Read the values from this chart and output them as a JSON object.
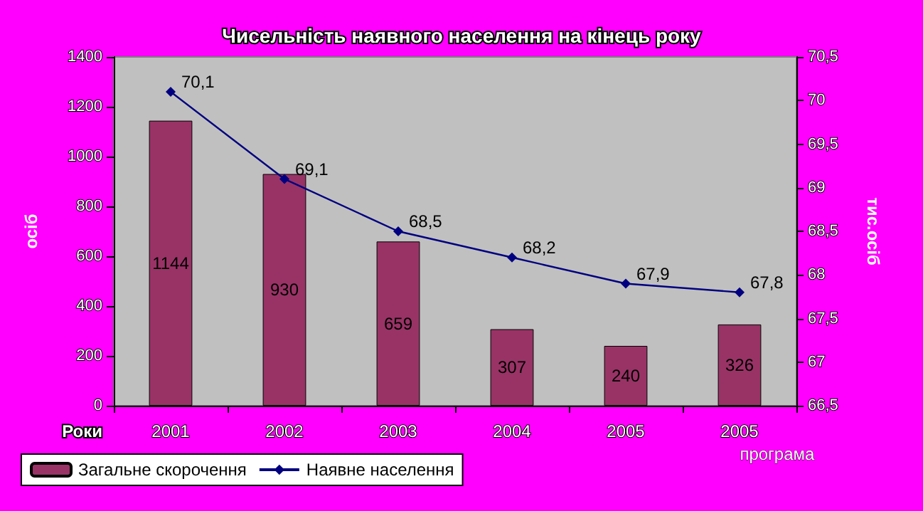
{
  "chart_data": {
    "type": "bar",
    "title": "Чисельність наявного населення на кінець року",
    "xlabel": "Роки",
    "ylabel": "осіб",
    "y2label": "тис.осіб",
    "annotations": [
      "програма"
    ],
    "categories": [
      "2001",
      "2002",
      "2003",
      "2004",
      "2005",
      "2005"
    ],
    "series": [
      {
        "name": "Загальне скорочення",
        "color": "#993366",
        "values": [
          1144,
          930,
          659,
          307,
          240,
          326
        ],
        "data_labels": true
      },
      {
        "name": "Наявне населення",
        "type": "line",
        "axis": "y2",
        "color": "#000080",
        "values": [
          70.1,
          69.1,
          68.5,
          68.2,
          67.9,
          67.8
        ],
        "value_labels": [
          "70,1",
          "69,1",
          "68,5",
          "68,2",
          "67,9",
          "67,8"
        ],
        "marker": "diamond"
      }
    ],
    "ylim": [
      0,
      1400
    ],
    "yticks": [
      0,
      200,
      400,
      600,
      800,
      1000,
      1200,
      1400
    ],
    "y2lim": [
      66.5,
      70.5
    ],
    "y2ticks": [
      {
        "value": 66.5,
        "label": "66,5"
      },
      {
        "value": 67,
        "label": "67"
      },
      {
        "value": 67.5,
        "label": "67,5"
      },
      {
        "value": 68,
        "label": "68"
      },
      {
        "value": 68.5,
        "label": "68,5"
      },
      {
        "value": 69,
        "label": "69"
      },
      {
        "value": 69.5,
        "label": "69,5"
      },
      {
        "value": 70,
        "label": "70"
      },
      {
        "value": 70.5,
        "label": "70,5"
      }
    ],
    "grid": false,
    "legend": "bottom left"
  }
}
